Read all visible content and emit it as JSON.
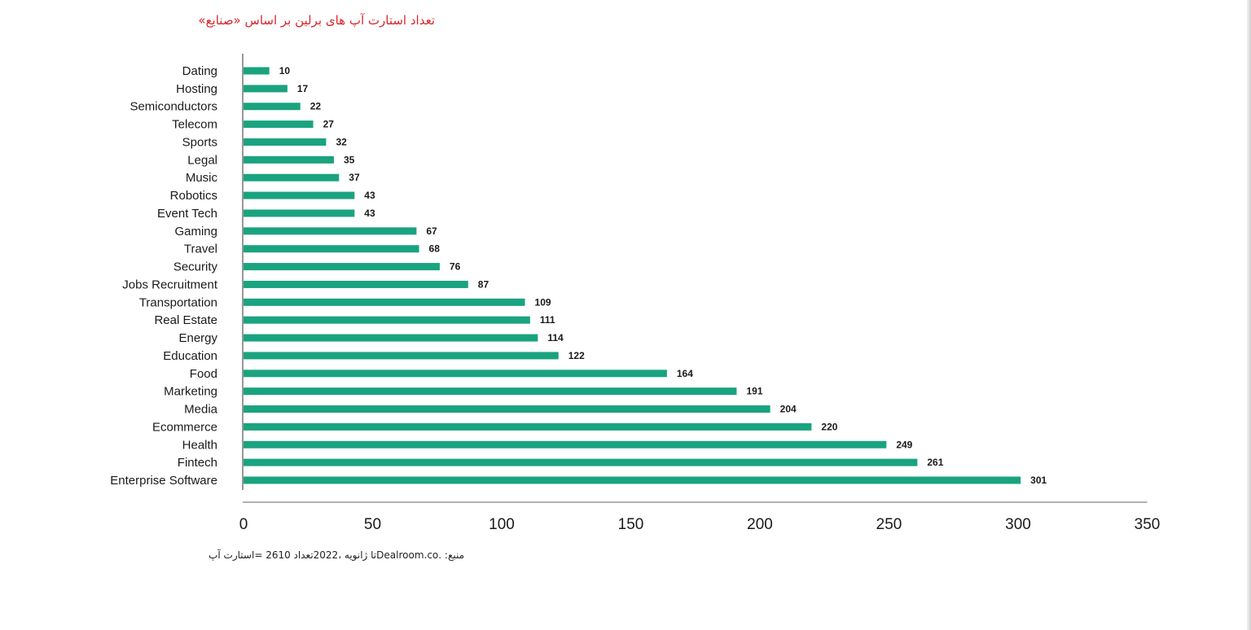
{
  "title": "تعداد استارت آپ های برلین بر اساس «صنایع»",
  "source_note": "منبع:  .Dealroom.coتا ژانویه  ،2022تعداد  2610 =استارت آپ",
  "chart_data": {
    "type": "bar",
    "orientation": "horizontal",
    "title": "تعداد استارت آپ های برلین بر اساس «صنایع»",
    "categories": [
      "Dating",
      "Hosting",
      "Semiconductors",
      "Telecom",
      "Sports",
      "Legal",
      "Music",
      "Robotics",
      "Event Tech",
      "Gaming",
      "Travel",
      "Security",
      "Jobs Recruitment",
      "Transportation",
      "Real Estate",
      "Energy",
      "Education",
      "Food",
      "Marketing",
      "Media",
      "Ecommerce",
      "Health",
      "Fintech",
      "Enterprise Software"
    ],
    "values": [
      10,
      17,
      22,
      27,
      32,
      35,
      37,
      43,
      43,
      67,
      68,
      76,
      87,
      109,
      111,
      114,
      122,
      164,
      191,
      204,
      220,
      249,
      261,
      301
    ],
    "xlim": [
      0,
      350
    ],
    "xticks": [
      "0",
      "50",
      "100",
      "150",
      "200",
      "250",
      "300",
      "350"
    ],
    "bar_color": "#1aa37f",
    "axis_color": "#999999",
    "grid": false,
    "legend": "none"
  }
}
